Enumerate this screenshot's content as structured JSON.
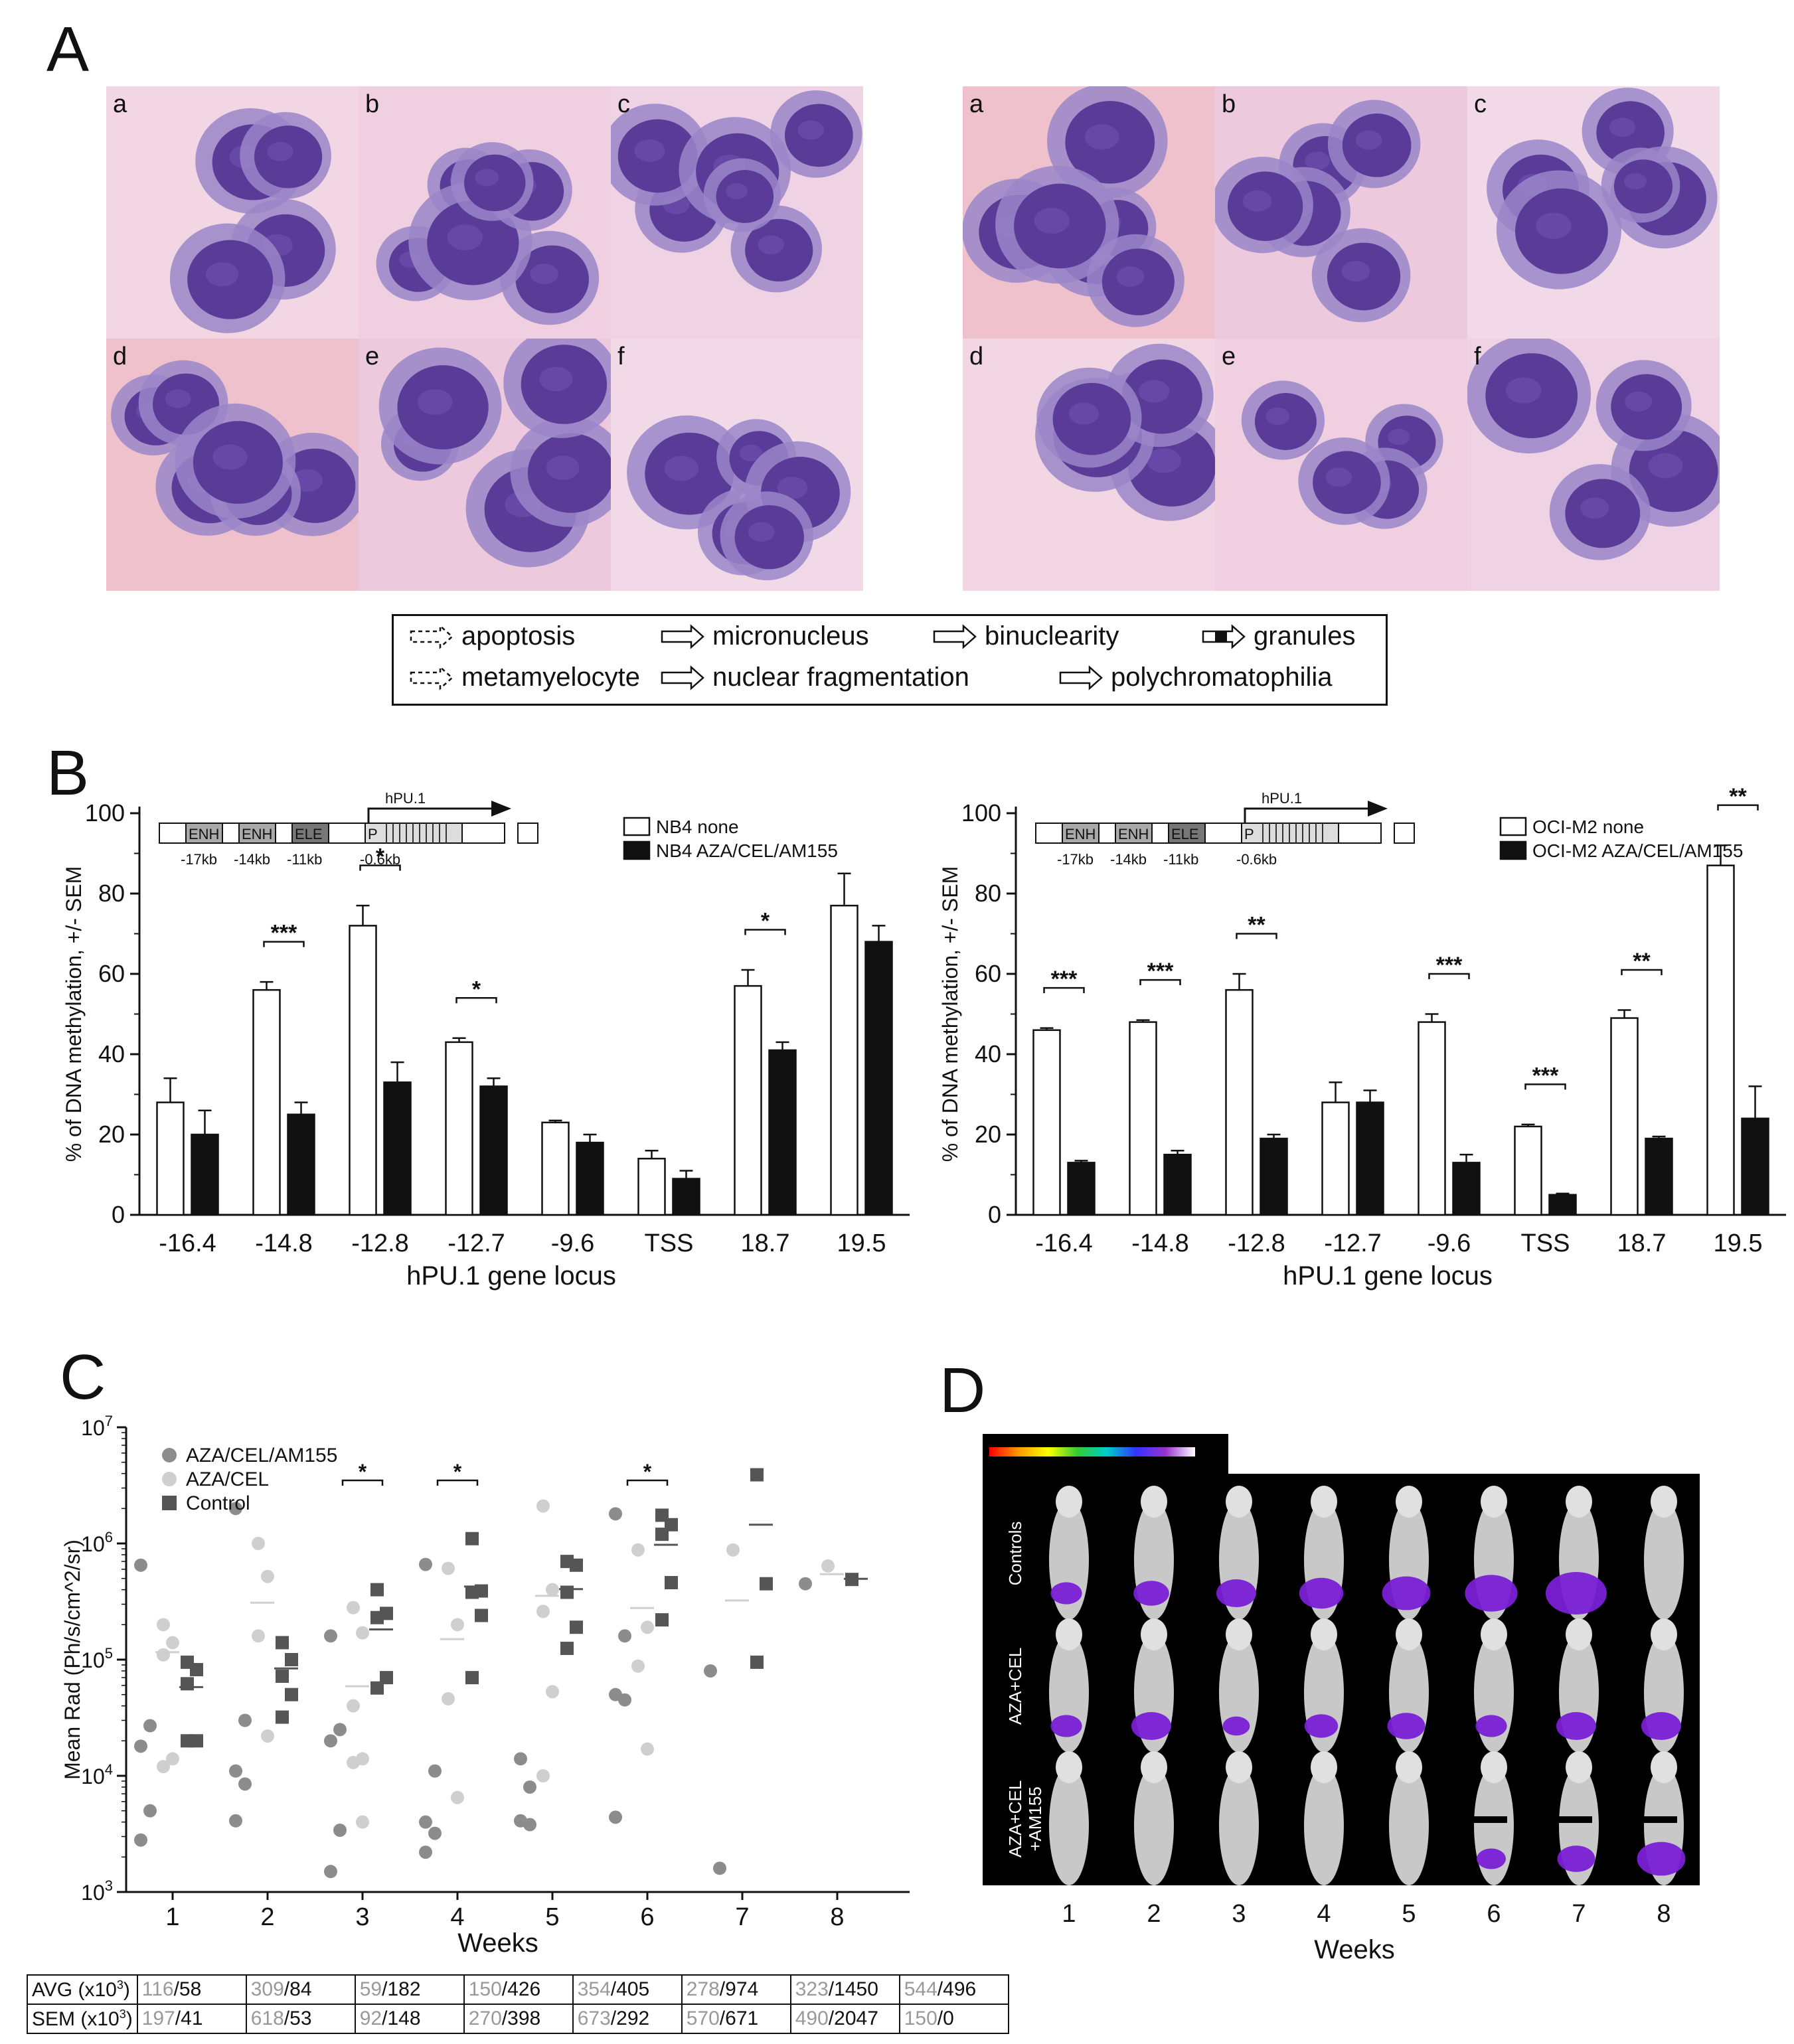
{
  "panels": {
    "A": "A",
    "B": "B",
    "C": "C",
    "D": "D"
  },
  "panelA": {
    "left_labels": [
      "a",
      "b",
      "c",
      "d",
      "e",
      "f"
    ],
    "right_labels": [
      "a",
      "b",
      "c",
      "d",
      "e",
      "f"
    ],
    "legend": [
      {
        "label": "apoptosis",
        "icon": "dashed-arrow-icon"
      },
      {
        "label": "micronucleus",
        "icon": "rounded-arrow-icon"
      },
      {
        "label": "binuclearity",
        "icon": "double-arrow-icon"
      },
      {
        "label": "granules",
        "icon": "striped-arrow-icon"
      },
      {
        "label": "metamyelocyte",
        "icon": "dashed-arrow-icon"
      },
      {
        "label": "nuclear fragmentation",
        "icon": "notched-arrow-icon"
      },
      {
        "label": "polychromatophilia",
        "icon": "open-arrow-icon"
      }
    ],
    "colors": {
      "cell": "#5b3a9a",
      "bg": "#f1cde0"
    }
  },
  "panelB": {
    "gene_map": {
      "arrow_label": "hPU.1",
      "boxes": [
        "ENH",
        "ENH",
        "ELE",
        "P"
      ],
      "positions": [
        "-17kb",
        "-14kb",
        "-11kb",
        "-0.6kb"
      ]
    },
    "xlabel": "hPU.1 gene locus",
    "ylabel": "% of DNA methylation, +/- SEM",
    "chart_data": [
      {
        "type": "bar",
        "categories": [
          "-16.4",
          "-14.8",
          "-12.8",
          "-12.7",
          "-9.6",
          "TSS",
          "18.7",
          "19.5"
        ],
        "ylim": [
          0,
          100
        ],
        "yticks": [
          "0",
          "20",
          "40",
          "60",
          "80",
          "100"
        ],
        "series": [
          {
            "name": "NB4 none",
            "values": [
              28,
              56,
              72,
              43,
              23,
              14,
              57,
              77
            ],
            "sem": [
              6,
              2,
              5,
              1,
              0.5,
              2,
              4,
              8
            ],
            "color": "#ffffff"
          },
          {
            "name": "NB4 AZA/CEL/AM155",
            "values": [
              20,
              25,
              33,
              32,
              18,
              9,
              41,
              68
            ],
            "sem": [
              6,
              3,
              5,
              2,
              2,
              2,
              2,
              4
            ],
            "color": "#111111"
          }
        ],
        "significance": [
          {
            "index": 1,
            "label": "***"
          },
          {
            "index": 2,
            "label": "*"
          },
          {
            "index": 3,
            "label": "*"
          },
          {
            "index": 6,
            "label": "*"
          }
        ]
      },
      {
        "type": "bar",
        "categories": [
          "-16.4",
          "-14.8",
          "-12.8",
          "-12.7",
          "-9.6",
          "TSS",
          "18.7",
          "19.5"
        ],
        "ylim": [
          0,
          100
        ],
        "yticks": [
          "0",
          "20",
          "40",
          "60",
          "80",
          "100"
        ],
        "series": [
          {
            "name": "OCI-M2 none",
            "values": [
              46,
              48,
              56,
              28,
              48,
              22,
              49,
              87
            ],
            "sem": [
              0.5,
              0.5,
              4,
              5,
              2,
              0.5,
              2,
              5
            ],
            "color": "#ffffff"
          },
          {
            "name": "OCI-M2 AZA/CEL/AM155",
            "values": [
              13,
              15,
              19,
              28,
              13,
              5,
              19,
              24
            ],
            "sem": [
              0.5,
              1,
              1,
              3,
              2,
              0.3,
              0.5,
              8
            ],
            "color": "#111111"
          }
        ],
        "significance": [
          {
            "index": 0,
            "label": "***"
          },
          {
            "index": 1,
            "label": "***"
          },
          {
            "index": 2,
            "label": "**"
          },
          {
            "index": 4,
            "label": "***"
          },
          {
            "index": 5,
            "label": "***"
          },
          {
            "index": 6,
            "label": "**"
          },
          {
            "index": 7,
            "label": "**"
          }
        ]
      }
    ]
  },
  "panelC": {
    "xlabel": "Weeks",
    "ylabel": "Mean Rad (Ph/s/cm^2/sr)",
    "chart_data": {
      "type": "scatter",
      "x": [
        1,
        2,
        3,
        4,
        5,
        6,
        7,
        8
      ],
      "yscale": "log",
      "ylim": [
        1000,
        10000000
      ],
      "yticks": [
        {
          "base": "10",
          "exp": "3"
        },
        {
          "base": "10",
          "exp": "4"
        },
        {
          "base": "10",
          "exp": "5"
        },
        {
          "base": "10",
          "exp": "6"
        },
        {
          "base": "10",
          "exp": "7"
        }
      ],
      "series": [
        {
          "name": "AZA/CEL/AM155",
          "color": "#8c8c8c",
          "marker": "circle",
          "points": [
            [
              1,
              650000
            ],
            [
              1,
              27000
            ],
            [
              1,
              18000
            ],
            [
              1,
              5000
            ],
            [
              1,
              2800
            ],
            [
              2,
              2000000
            ],
            [
              2,
              30000
            ],
            [
              2,
              11000
            ],
            [
              2,
              8500
            ],
            [
              2,
              4100
            ],
            [
              3,
              160000
            ],
            [
              3,
              25000
            ],
            [
              3,
              20000
            ],
            [
              3,
              3400
            ],
            [
              3,
              1500
            ],
            [
              4,
              660000
            ],
            [
              4,
              11000
            ],
            [
              4,
              4000
            ],
            [
              4,
              3200
            ],
            [
              4,
              2200
            ],
            [
              5,
              14000
            ],
            [
              5,
              8000
            ],
            [
              5,
              4100
            ],
            [
              5,
              3800
            ],
            [
              6,
              1800000
            ],
            [
              6,
              160000
            ],
            [
              6,
              50000
            ],
            [
              6,
              45000
            ],
            [
              6,
              4400
            ],
            [
              7,
              80000
            ],
            [
              7,
              1600
            ],
            [
              8,
              450000
            ]
          ],
          "means": [
            null,
            null,
            null,
            null,
            null,
            null,
            null,
            null
          ]
        },
        {
          "name": "AZA/CEL",
          "color": "#cfcfcf",
          "marker": "circle",
          "points": [
            [
              1,
              200000
            ],
            [
              1,
              140000
            ],
            [
              1,
              110000
            ],
            [
              1,
              14000
            ],
            [
              1,
              12000
            ],
            [
              2,
              1000000
            ],
            [
              2,
              520000
            ],
            [
              2,
              160000
            ],
            [
              2,
              22000
            ],
            [
              3,
              280000
            ],
            [
              3,
              170000
            ],
            [
              3,
              40000
            ],
            [
              3,
              14000
            ],
            [
              3,
              13000
            ],
            [
              3,
              4000
            ],
            [
              4,
              610000
            ],
            [
              4,
              200000
            ],
            [
              4,
              46000
            ],
            [
              4,
              6500
            ],
            [
              5,
              2100000
            ],
            [
              5,
              400000
            ],
            [
              5,
              260000
            ],
            [
              5,
              53000
            ],
            [
              5,
              10000
            ],
            [
              6,
              880000
            ],
            [
              6,
              190000
            ],
            [
              6,
              88000
            ],
            [
              6,
              17000
            ],
            [
              7,
              880000
            ],
            [
              8,
              640000
            ]
          ],
          "means": [
            116000,
            309000,
            59000,
            150000,
            354000,
            278000,
            323000,
            544000
          ]
        },
        {
          "name": "Control",
          "color": "#555555",
          "marker": "square",
          "points": [
            [
              1,
              95000
            ],
            [
              1,
              82000
            ],
            [
              1,
              62000
            ],
            [
              1,
              20000
            ],
            [
              1,
              20000
            ],
            [
              2,
              140000
            ],
            [
              2,
              100000
            ],
            [
              2,
              72000
            ],
            [
              2,
              50000
            ],
            [
              2,
              32000
            ],
            [
              3,
              400000
            ],
            [
              3,
              250000
            ],
            [
              3,
              230000
            ],
            [
              3,
              70000
            ],
            [
              3,
              57000
            ],
            [
              4,
              1100000
            ],
            [
              4,
              390000
            ],
            [
              4,
              380000
            ],
            [
              4,
              240000
            ],
            [
              4,
              70000
            ],
            [
              5,
              700000
            ],
            [
              5,
              650000
            ],
            [
              5,
              380000
            ],
            [
              5,
              190000
            ],
            [
              5,
              125000
            ],
            [
              6,
              1750000
            ],
            [
              6,
              1450000
            ],
            [
              6,
              1200000
            ],
            [
              6,
              460000
            ],
            [
              6,
              220000
            ],
            [
              7,
              3900000
            ],
            [
              7,
              450000
            ],
            [
              7,
              95000
            ],
            [
              8,
              490000
            ]
          ],
          "means": [
            58000,
            84000,
            182000,
            426000,
            405000,
            974000,
            1450000,
            496000
          ]
        }
      ],
      "significance": [
        {
          "week": 3,
          "label": "*"
        },
        {
          "week": 4,
          "label": "*"
        },
        {
          "week": 6,
          "label": "*"
        }
      ]
    },
    "table": {
      "rows": [
        {
          "label": "AVG (x10",
          "sup": "3",
          "suffix": ")",
          "values": [
            [
              "116",
              "58"
            ],
            [
              "309",
              "84"
            ],
            [
              "59",
              "182"
            ],
            [
              "150",
              "426"
            ],
            [
              "354",
              "405"
            ],
            [
              "278",
              "974"
            ],
            [
              "323",
              "1450"
            ],
            [
              "544",
              "496"
            ]
          ]
        },
        {
          "label": "SEM (x10",
          "sup": "3",
          "suffix": ")",
          "values": [
            [
              "197",
              "41"
            ],
            [
              "618",
              "53"
            ],
            [
              "92",
              "148"
            ],
            [
              "270",
              "398"
            ],
            [
              "673",
              "292"
            ],
            [
              "570",
              "671"
            ],
            [
              "490",
              "2047"
            ],
            [
              "150",
              "0"
            ]
          ]
        }
      ]
    }
  },
  "panelD": {
    "row_labels": [
      "Controls",
      "AZA+CEL",
      "AZA+CEL\n+AM155"
    ],
    "weeks": [
      "1",
      "2",
      "3",
      "4",
      "5",
      "6",
      "7",
      "8"
    ],
    "xlabel": "Weeks",
    "signal": [
      [
        0.3,
        0.4,
        0.5,
        0.6,
        0.7,
        0.8,
        1.0,
        null
      ],
      [
        0.3,
        0.5,
        0.2,
        0.35,
        0.45,
        0.3,
        0.5,
        0.5
      ],
      [
        0,
        0,
        0,
        0,
        0,
        0.25,
        0.45,
        0.7
      ]
    ]
  }
}
